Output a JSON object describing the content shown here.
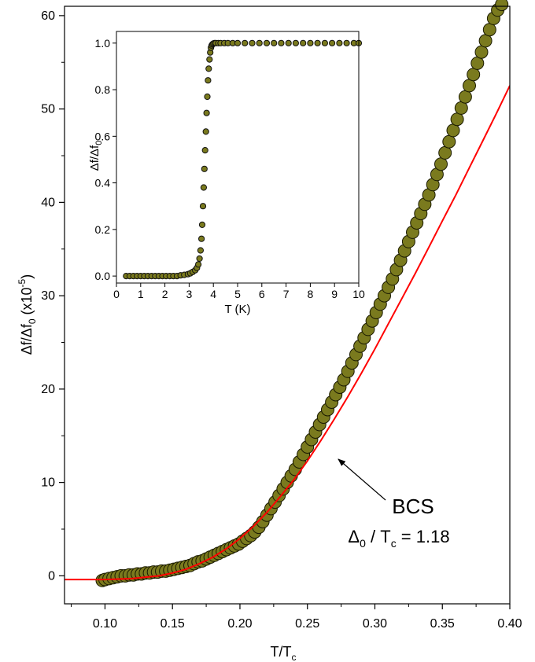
{
  "chart_data": [
    {
      "type": "scatter",
      "title": "",
      "xlabel": "T/T",
      "xlabel_sub": "c",
      "ylabel": "Δf/Δf",
      "ylabel_sub": "0",
      "ylabel_unit": " (x10",
      "ylabel_sup": "-5",
      "ylabel_close": ")",
      "xlim": [
        0.07,
        0.4
      ],
      "ylim": [
        -3,
        61
      ],
      "xticks": [
        0.1,
        0.15,
        0.2,
        0.25,
        0.3,
        0.35,
        0.4
      ],
      "xtick_labels": [
        "0.10",
        "0.15",
        "0.20",
        "0.25",
        "0.30",
        "0.35",
        "0.40"
      ],
      "yticks": [
        0,
        10,
        20,
        30,
        40,
        50,
        60
      ],
      "ytick_labels": [
        "0",
        "10",
        "20",
        "30",
        "40",
        "50",
        "60"
      ],
      "grid": false,
      "marker_color": "#7a7a1e",
      "fit_color": "#ff0000",
      "series": [
        {
          "kind": "points",
          "x": [
            0.098,
            0.1,
            0.103,
            0.106,
            0.109,
            0.112,
            0.115,
            0.118,
            0.121,
            0.124,
            0.127,
            0.13,
            0.133,
            0.136,
            0.139,
            0.142,
            0.145,
            0.148,
            0.151,
            0.154,
            0.157,
            0.16,
            0.163,
            0.166,
            0.169,
            0.172,
            0.175,
            0.178,
            0.181,
            0.184,
            0.187,
            0.19,
            0.193,
            0.196,
            0.199,
            0.202,
            0.205,
            0.208,
            0.211,
            0.214,
            0.217,
            0.22,
            0.223,
            0.226,
            0.229,
            0.232,
            0.235,
            0.238,
            0.241,
            0.244,
            0.247,
            0.25,
            0.253,
            0.256,
            0.259,
            0.262,
            0.265,
            0.268,
            0.271,
            0.274,
            0.277,
            0.28,
            0.283,
            0.286,
            0.289,
            0.292,
            0.295,
            0.298,
            0.301,
            0.304,
            0.307,
            0.31,
            0.313,
            0.316,
            0.319,
            0.322,
            0.325,
            0.328,
            0.331,
            0.334,
            0.337,
            0.34,
            0.343,
            0.346,
            0.349,
            0.352,
            0.355,
            0.358,
            0.361,
            0.364,
            0.367,
            0.37,
            0.373,
            0.376,
            0.379,
            0.382,
            0.385,
            0.388,
            0.391,
            0.394
          ],
          "y": [
            -0.5,
            -0.4,
            -0.3,
            -0.2,
            -0.1,
            0.0,
            0.0,
            0.1,
            0.1,
            0.2,
            0.2,
            0.3,
            0.3,
            0.4,
            0.4,
            0.5,
            0.5,
            0.6,
            0.7,
            0.8,
            0.9,
            1.0,
            1.1,
            1.3,
            1.5,
            1.6,
            1.8,
            2.0,
            2.2,
            2.4,
            2.6,
            2.8,
            3.0,
            3.2,
            3.4,
            3.7,
            4.0,
            4.3,
            4.7,
            5.2,
            5.8,
            6.5,
            7.2,
            7.9,
            8.6,
            9.3,
            10.0,
            10.7,
            11.4,
            12.2,
            13.0,
            13.8,
            14.6,
            15.4,
            16.2,
            17.0,
            17.8,
            18.6,
            19.4,
            20.2,
            21.0,
            21.9,
            22.8,
            23.7,
            24.6,
            25.5,
            26.4,
            27.3,
            28.2,
            29.1,
            30.0,
            30.9,
            31.8,
            32.8,
            33.8,
            34.8,
            35.8,
            36.8,
            37.8,
            38.8,
            39.8,
            40.8,
            41.9,
            43.0,
            44.1,
            45.3,
            46.5,
            47.7,
            48.9,
            50.1,
            51.3,
            52.5,
            53.7,
            54.9,
            56.1,
            57.3,
            58.5,
            59.7,
            60.6,
            61.2
          ]
        },
        {
          "kind": "fit",
          "name": "BCS",
          "x": [
            0.07,
            0.1,
            0.12,
            0.14,
            0.15,
            0.16,
            0.17,
            0.18,
            0.19,
            0.2,
            0.21,
            0.22,
            0.23,
            0.24,
            0.25,
            0.26,
            0.27,
            0.28,
            0.29,
            0.3,
            0.31,
            0.32,
            0.33,
            0.34,
            0.35,
            0.36,
            0.37,
            0.38,
            0.39,
            0.4
          ],
          "y": [
            -0.4,
            -0.4,
            -0.3,
            0.0,
            0.3,
            0.7,
            1.3,
            2.0,
            2.9,
            4.0,
            5.3,
            6.8,
            8.5,
            10.3,
            12.3,
            14.5,
            16.8,
            19.2,
            21.7,
            24.3,
            27.0,
            29.7,
            32.4,
            35.2,
            38.0,
            40.8,
            43.7,
            46.6,
            49.5,
            52.5
          ]
        }
      ],
      "annotation": {
        "text": "BCS",
        "formula_symbol": "Δ",
        "formula_sub": "0",
        "formula_mid": " / T",
        "formula_sub2": "c",
        "formula_rest": " = 1.18",
        "arrow_target": [
          0.27,
          13.0
        ]
      }
    },
    {
      "type": "scatter",
      "title": "",
      "xlabel": "T (K)",
      "ylabel": "Δf/Δf",
      "ylabel_sub": "0",
      "xlim": [
        0,
        10
      ],
      "ylim": [
        -0.03,
        1.05
      ],
      "xticks": [
        0,
        1,
        2,
        3,
        4,
        5,
        6,
        7,
        8,
        9,
        10
      ],
      "xtick_labels": [
        "0",
        "1",
        "2",
        "3",
        "4",
        "5",
        "6",
        "7",
        "8",
        "9",
        "10"
      ],
      "yticks": [
        0.0,
        0.2,
        0.4,
        0.6,
        0.8,
        1.0
      ],
      "ytick_labels": [
        "0.0",
        "0.2",
        "0.4",
        "0.6",
        "0.8",
        "1.0"
      ],
      "grid": false,
      "marker_color": "#7a7a1e",
      "series": [
        {
          "kind": "points",
          "x": [
            0.4,
            0.55,
            0.7,
            0.85,
            1.0,
            1.15,
            1.3,
            1.45,
            1.6,
            1.75,
            1.9,
            2.05,
            2.2,
            2.35,
            2.5,
            2.65,
            2.8,
            2.95,
            3.05,
            3.15,
            3.25,
            3.32,
            3.38,
            3.43,
            3.47,
            3.51,
            3.54,
            3.57,
            3.6,
            3.63,
            3.66,
            3.69,
            3.72,
            3.75,
            3.78,
            3.81,
            3.84,
            3.87,
            3.9,
            3.93,
            3.96,
            4.0,
            4.05,
            4.1,
            4.2,
            4.3,
            4.45,
            4.6,
            4.8,
            5.0,
            5.3,
            5.6,
            5.9,
            6.2,
            6.5,
            6.8,
            7.1,
            7.4,
            7.7,
            8.0,
            8.3,
            8.6,
            8.9,
            9.2,
            9.5,
            9.8,
            10.0
          ],
          "y": [
            0.0,
            0.0,
            0.0,
            0.0,
            0.0,
            0.0,
            0.0,
            0.0,
            0.0,
            0.0,
            0.0,
            0.0,
            0.0,
            0.0,
            0.0,
            0.003,
            0.005,
            0.008,
            0.012,
            0.018,
            0.025,
            0.035,
            0.05,
            0.075,
            0.11,
            0.16,
            0.22,
            0.3,
            0.38,
            0.46,
            0.54,
            0.62,
            0.7,
            0.77,
            0.84,
            0.89,
            0.93,
            0.96,
            0.98,
            0.99,
            0.995,
            0.998,
            1.0,
            1.0,
            1.0,
            1.0,
            1.0,
            1.0,
            1.0,
            1.0,
            1.0,
            1.0,
            1.0,
            1.0,
            1.0,
            1.0,
            1.0,
            1.0,
            1.0,
            1.0,
            1.0,
            1.0,
            1.0,
            1.0,
            1.0,
            1.0,
            1.0
          ]
        }
      ]
    }
  ]
}
